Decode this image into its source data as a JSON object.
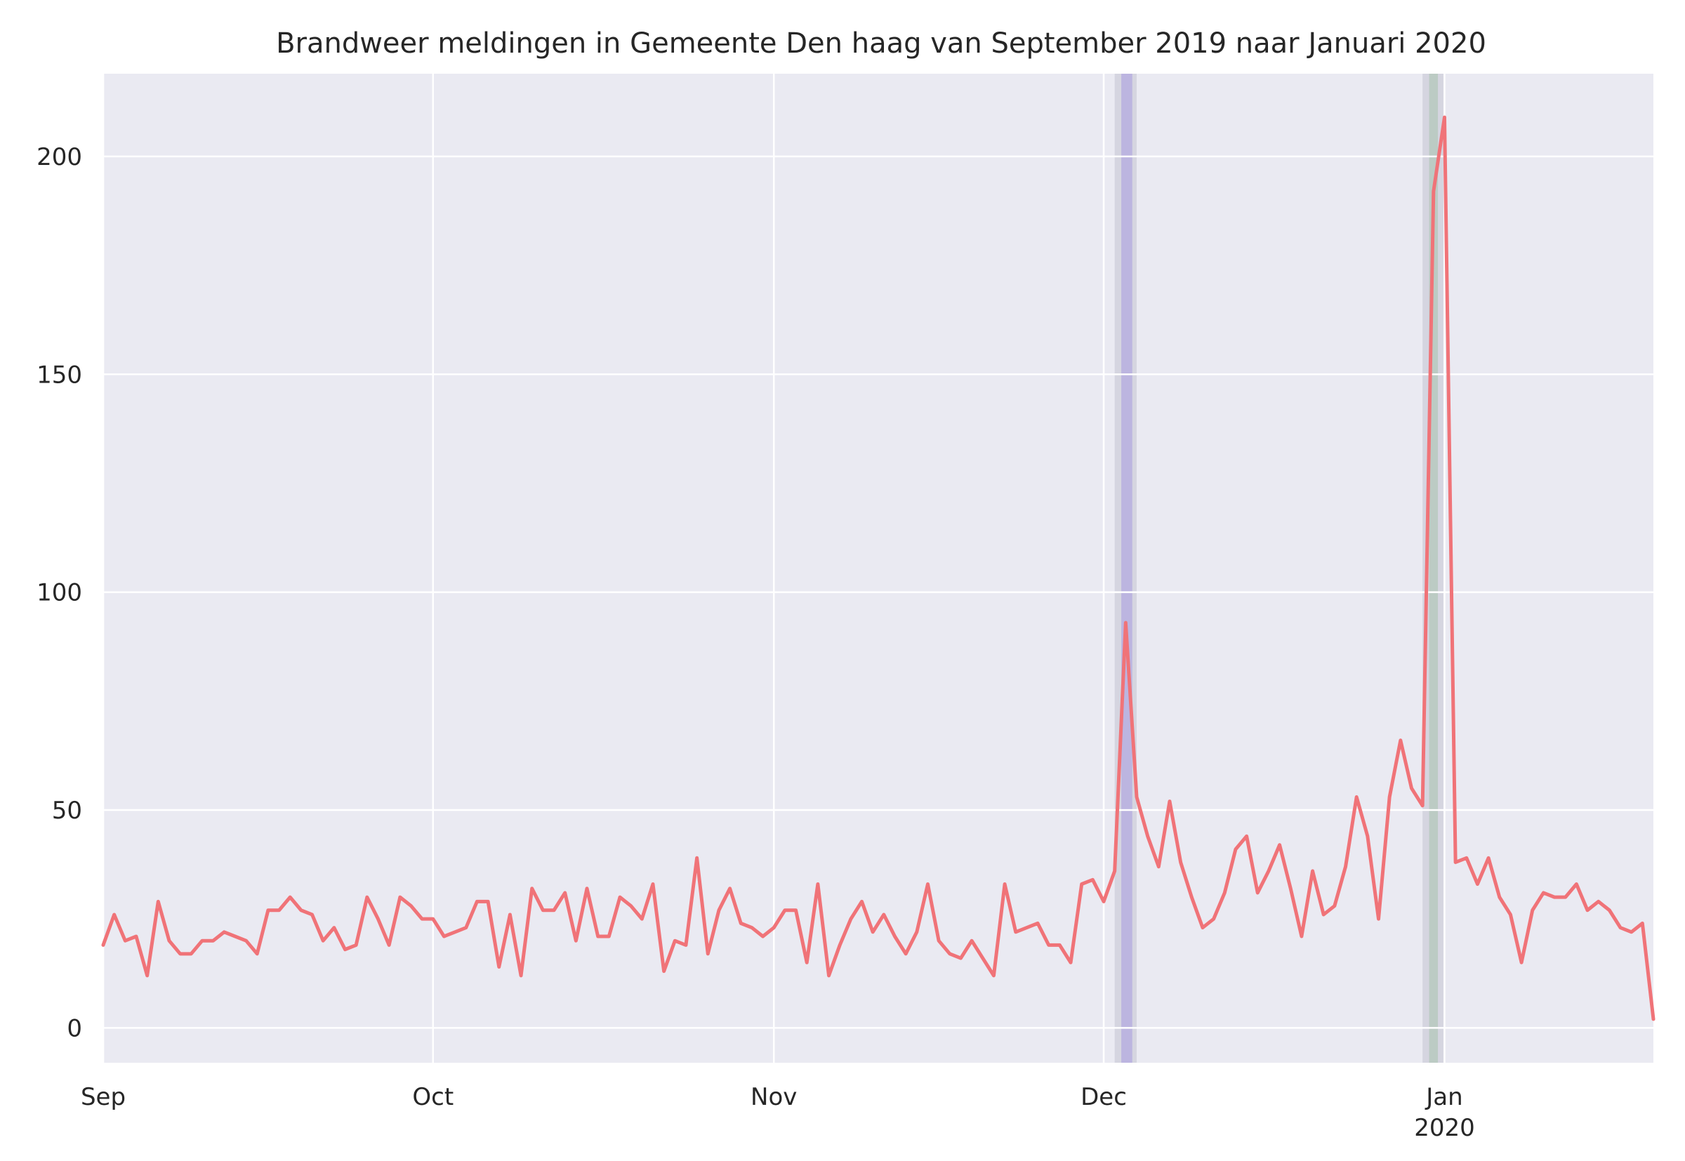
{
  "chart_data": {
    "type": "line",
    "title": "Brandweer meldingen in Gemeente Den haag van September 2019 naar Januari 2020",
    "xlabel": "",
    "ylabel": "",
    "x_start": "2019-09-01",
    "xlim": [
      "2019-09-01",
      "2020-01-20"
    ],
    "ylim": [
      -8,
      219
    ],
    "y_ticks": [
      0,
      50,
      100,
      150,
      200
    ],
    "x_ticks": [
      {
        "date": "2019-09-01",
        "label": "Sep",
        "sublabel": ""
      },
      {
        "date": "2019-10-01",
        "label": "Oct",
        "sublabel": ""
      },
      {
        "date": "2019-11-01",
        "label": "Nov",
        "sublabel": ""
      },
      {
        "date": "2019-12-01",
        "label": "Dec",
        "sublabel": ""
      },
      {
        "date": "2020-01-01",
        "label": "Jan",
        "sublabel": "2020"
      }
    ],
    "grid": true,
    "style": {
      "background": "#EAEAF2",
      "grid_color": "#FFFFFF",
      "line_color": "#F07378"
    },
    "highlight_bands": [
      {
        "start": "2019-12-02",
        "end": "2019-12-04",
        "color": "#B0B0C0",
        "opacity": 0.35
      },
      {
        "start": "2019-12-02.6",
        "end": "2019-12-03.6",
        "color": "#9E8FE0",
        "opacity": 0.45
      },
      {
        "start": "2019-12-30",
        "end": "2019-12-31.9",
        "color": "#B0B0C0",
        "opacity": 0.35
      },
      {
        "start": "2019-12-30.6",
        "end": "2019-12-31.4",
        "color": "#8FB98F",
        "opacity": 0.35
      }
    ],
    "series": [
      {
        "values": [
          19,
          26,
          20,
          21,
          12,
          29,
          20,
          17,
          17,
          20,
          20,
          22,
          21,
          20,
          17,
          27,
          27,
          30,
          27,
          26,
          20,
          23,
          18,
          19,
          30,
          25,
          19,
          30,
          28,
          25,
          25,
          21,
          22,
          23,
          29,
          29,
          14,
          26,
          12,
          32,
          27,
          27,
          31,
          20,
          32,
          21,
          21,
          30,
          28,
          25,
          33,
          13,
          20,
          19,
          39,
          17,
          27,
          32,
          24,
          23,
          21,
          23,
          27,
          27,
          15,
          33,
          12,
          19,
          25,
          29,
          22,
          26,
          21,
          17,
          22,
          33,
          20,
          17,
          16,
          20,
          16,
          12,
          33,
          22,
          23,
          24,
          19,
          19,
          15,
          33,
          34,
          29,
          36,
          93,
          53,
          44,
          37,
          52,
          38,
          30,
          23,
          25,
          31,
          41,
          44,
          31,
          36,
          42,
          32,
          21,
          36,
          26,
          28,
          37,
          53,
          44,
          25,
          53,
          66,
          55,
          51,
          192,
          209,
          38,
          39,
          33,
          39,
          30,
          26,
          15,
          27,
          31,
          30,
          30,
          33,
          27,
          29,
          27,
          23,
          22,
          24,
          2
        ]
      }
    ]
  }
}
